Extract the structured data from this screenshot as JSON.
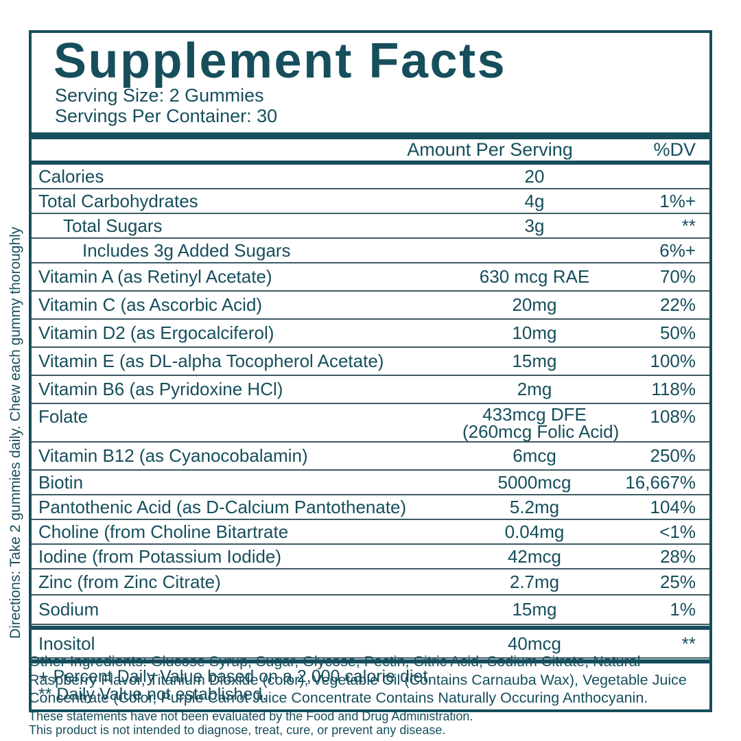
{
  "label": {
    "title": "Supplement Facts",
    "serving_size": "Serving Size: 2 Gummies",
    "servings_per_container": "Servings Per Container: 30",
    "directions": "Directions: Take 2 gummies daily. Chew each gummy thoroughly",
    "colors": {
      "teal": "#164e5c",
      "row_line": "#3d5a63"
    },
    "columns": {
      "amount": "Amount Per Serving",
      "dv": "%DV"
    },
    "rows": [
      {
        "name": "Calories",
        "amount": "20",
        "dv": ""
      },
      {
        "name": "Total Carbohydrates",
        "amount": "4g",
        "dv": "1%+"
      },
      {
        "name": "Total Sugars",
        "amount": "3g",
        "dv": "**"
      },
      {
        "name": "Includes 3g Added Sugars",
        "amount": "",
        "dv": "6%+"
      },
      {
        "name": "Vitamin A (as Retinyl Acetate)",
        "amount": "630 mcg RAE",
        "dv": "70%"
      },
      {
        "name": "Vitamin C (as Ascorbic Acid)",
        "amount": "20mg",
        "dv": "22%"
      },
      {
        "name": "Vitamin D2 (as Ergocalciferol)",
        "amount": "10mg",
        "dv": "50%"
      },
      {
        "name": "Vitamin E (as DL-alpha Tocopherol Acetate)",
        "amount": "15mg",
        "dv": "100%"
      },
      {
        "name": "Vitamin B6 (as Pyridoxine HCl)",
        "amount": "2mg",
        "dv": "118%"
      },
      {
        "name": "Folate",
        "amount": "433mcg DFE",
        "amount_line2": "(260mcg Folic Acid)",
        "dv": "108%"
      },
      {
        "name": "Vitamin B12 (as Cyanocobalamin)",
        "amount": "6mcg",
        "dv": "250%"
      },
      {
        "name": "Biotin",
        "amount": "5000mcg",
        "dv": "16,667%"
      },
      {
        "name": "Pantothenic Acid (as D-Calcium Pantothenate)",
        "amount": "5.2mg",
        "dv": "104%"
      },
      {
        "name": "Choline (from Choline Bitartrate",
        "amount": "0.04mg",
        "dv": "<1%"
      },
      {
        "name": "Iodine (from Potassium Iodide)",
        "amount": "42mcg",
        "dv": "28%"
      },
      {
        "name": "Zinc (from Zinc Citrate)",
        "amount": "2.7mg",
        "dv": "25%"
      },
      {
        "name": "Sodium",
        "amount": "15mg",
        "dv": "1%"
      },
      {
        "name": "Inositol",
        "amount": "40mcg",
        "dv": "**"
      }
    ],
    "footnotes": [
      "+ Percent Daily Value based on a 2,000 calorie diet.",
      "** Daily Value not established."
    ],
    "other_ingredients_lines": [
      "Other Ingredients: Glucose Syrup, Sugar, Glycose, Pectin, Citric Acid, Sodium Citrate, Natural",
      "Raspberry Flavor, Titanium Dioxide (color), Vegetable Oil (Contains Carnauba Wax), Vegetable Juice",
      "Concentrate (Color, Purple Carrot Juice Concentrate Contains Naturally Occuring Anthocyanin."
    ],
    "disclaimer_lines": [
      "These statements have not been evaluated by the Food and Drug Administration.",
      "This product is not intended to diagnose, treat, cure, or prevent any disease."
    ]
  }
}
